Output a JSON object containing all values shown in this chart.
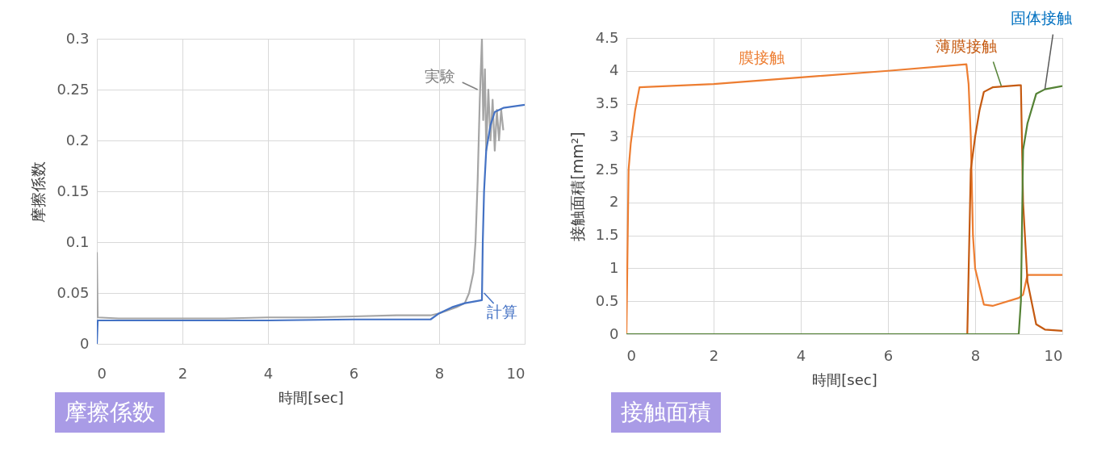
{
  "chart_data": [
    {
      "type": "line",
      "title": "摩擦係数",
      "xlabel": "時間[sec]",
      "ylabel": "摩擦係数",
      "xlim": [
        0,
        10
      ],
      "xticks": [
        0,
        2,
        4,
        6,
        8,
        10
      ],
      "ylim": [
        0,
        0.3
      ],
      "yticks": [
        0,
        0.05,
        0.1,
        0.15,
        0.2,
        0.25,
        0.3
      ],
      "grid": true,
      "line_style": "solid",
      "marker": "none",
      "series": [
        {
          "color": "#a5a5a5",
          "x": [
            0,
            0.02,
            0.5,
            1,
            2,
            3,
            4,
            5,
            6,
            7,
            7.8,
            8.0,
            8.2,
            8.4,
            8.6,
            8.7,
            8.8,
            8.85,
            8.9,
            8.95,
            9.0,
            9.03,
            9.07,
            9.1,
            9.15,
            9.2,
            9.25,
            9.3,
            9.35,
            9.4,
            9.45,
            9.5
          ],
          "values": [
            0.09,
            0.026,
            0.025,
            0.025,
            0.025,
            0.025,
            0.026,
            0.026,
            0.027,
            0.028,
            0.028,
            0.03,
            0.033,
            0.036,
            0.04,
            0.05,
            0.07,
            0.1,
            0.16,
            0.24,
            0.3,
            0.22,
            0.27,
            0.19,
            0.25,
            0.2,
            0.24,
            0.19,
            0.23,
            0.2,
            0.23,
            0.21
          ]
        },
        {
          "color": "#4472c4",
          "x": [
            0,
            0.02,
            2,
            4,
            6,
            7.8,
            8.0,
            8.3,
            8.6,
            9.0,
            9.02,
            9.05,
            9.1,
            9.2,
            9.3,
            9.5,
            10
          ],
          "values": [
            0,
            0.023,
            0.023,
            0.023,
            0.024,
            0.024,
            0.03,
            0.036,
            0.04,
            0.043,
            0.1,
            0.15,
            0.19,
            0.215,
            0.228,
            0.232,
            0.235
          ]
        }
      ],
      "annotations": [
        {
          "text": "実験",
          "x": 8.9,
          "y": 0.25
        },
        {
          "text": "計算",
          "x": 9.05,
          "y": 0.05
        }
      ]
    },
    {
      "type": "line",
      "title": "接触面積",
      "xlabel": "時間[sec]",
      "ylabel": "接触面積[mm²]",
      "xlim": [
        0,
        10
      ],
      "xticks": [
        0,
        2,
        4,
        6,
        8,
        10
      ],
      "ylim": [
        0,
        4.5
      ],
      "yticks": [
        0,
        0.5,
        1,
        1.5,
        2,
        2.5,
        3,
        3.5,
        4,
        4.5
      ],
      "grid": true,
      "line_style": "solid",
      "marker": "none",
      "series": [
        {
          "color": "#ed7d31",
          "x": [
            0,
            0.05,
            0.1,
            0.2,
            0.3,
            2,
            4,
            6,
            7.8,
            7.85,
            7.9,
            7.95,
            8.0,
            8.2,
            8.4,
            9.0,
            9.1,
            9.2,
            9.5,
            10
          ],
          "values": [
            0,
            2.5,
            2.9,
            3.4,
            3.75,
            3.8,
            3.9,
            4.0,
            4.1,
            3.8,
            3.0,
            1.5,
            1.0,
            0.45,
            0.43,
            0.55,
            0.6,
            0.9,
            0.9,
            0.9
          ]
        },
        {
          "color": "#c55a11",
          "x": [
            0,
            7.8,
            7.82,
            7.9,
            8.0,
            8.1,
            8.2,
            8.4,
            9.0,
            9.05,
            9.1,
            9.2,
            9.4,
            9.6,
            10
          ],
          "values": [
            0,
            0,
            0,
            2.5,
            3.0,
            3.4,
            3.68,
            3.75,
            3.78,
            3.78,
            2.0,
            0.8,
            0.15,
            0.07,
            0.05
          ]
        },
        {
          "color": "#548235",
          "x": [
            0,
            9.0,
            9.05,
            9.1,
            9.2,
            9.4,
            9.6,
            10
          ],
          "values": [
            0,
            0,
            0.5,
            2.8,
            3.2,
            3.65,
            3.72,
            3.77
          ]
        }
      ],
      "annotations": [
        {
          "text": "膜接触",
          "x": 3.1,
          "y": 3.85
        },
        {
          "text": "薄膜接触",
          "x": 8.6,
          "y": 3.77
        },
        {
          "text": "固体接触",
          "x": 9.6,
          "y": 3.72
        }
      ]
    }
  ]
}
